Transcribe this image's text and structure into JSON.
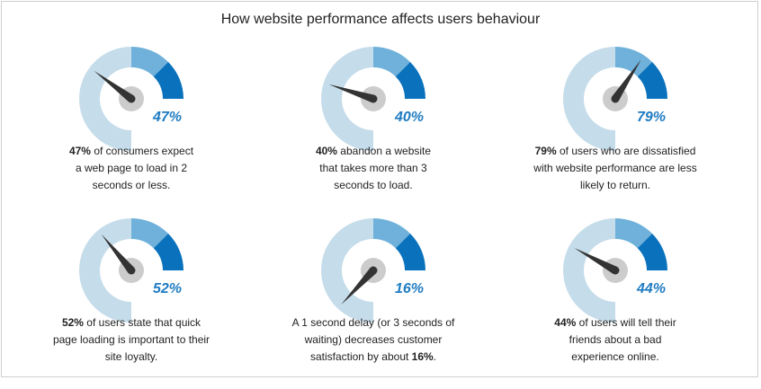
{
  "title": "How website performance affects users behaviour",
  "colors": {
    "track": "#c5dcea",
    "mid": "#6fb1da",
    "dark": "#0a72bc",
    "hub": "#cccccc",
    "needle": "#333333",
    "percent": "#1f7cc2"
  },
  "gauges": [
    {
      "value": 47,
      "percent_label": "47%",
      "desc_parts": [
        [
          "47%",
          true
        ],
        [
          " of consumers expect a web page to load in 2 seconds or less.",
          false
        ]
      ]
    },
    {
      "value": 40,
      "percent_label": "40%",
      "desc_parts": [
        [
          "40%",
          true
        ],
        [
          " abandon a website that takes more than 3 seconds to load.",
          false
        ]
      ]
    },
    {
      "value": 79,
      "percent_label": "79%",
      "desc_parts": [
        [
          "79%",
          true
        ],
        [
          " of users who are dissatisfied with website performance are less likely to return.",
          false
        ]
      ]
    },
    {
      "value": 52,
      "percent_label": "52%",
      "desc_parts": [
        [
          "52%",
          true
        ],
        [
          " of users state that quick page loading is important to their site loyalty.",
          false
        ]
      ]
    },
    {
      "value": 16,
      "percent_label": "16%",
      "desc_parts": [
        [
          "A 1 second delay (or 3 seconds of waiting) decreases customer satisfaction by about ",
          false
        ],
        [
          "16%",
          true
        ],
        [
          ".",
          false
        ]
      ]
    },
    {
      "value": 44,
      "percent_label": "44%",
      "desc_parts": [
        [
          "44%",
          true
        ],
        [
          " of users will tell their friends about a bad experience online.",
          false
        ]
      ]
    }
  ]
}
